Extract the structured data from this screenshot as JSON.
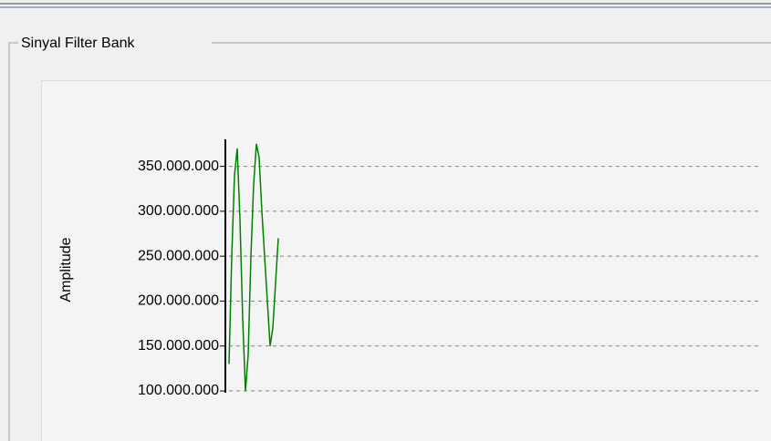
{
  "group_title": "Sinyal Filter Bank",
  "chart_data": {
    "type": "line",
    "ylabel": "Amplitude",
    "categories": [
      null,
      null,
      null,
      null,
      null,
      null,
      null,
      null,
      null,
      null,
      null,
      null,
      null,
      null,
      null,
      null,
      null,
      null,
      null
    ],
    "series": [
      {
        "name": null,
        "color": "#008000",
        "values": [
          130000000,
          250000000,
          340000000,
          370000000,
          290000000,
          180000000,
          100000000,
          140000000,
          250000000,
          330000000,
          375000000,
          360000000,
          300000000,
          250000000,
          200000000,
          150000000,
          170000000,
          220000000,
          270000000
        ]
      }
    ],
    "ylim": [
      98000000,
      380000000
    ],
    "yticks": [
      {
        "value": 100000000,
        "label": "100.000.000"
      },
      {
        "value": 150000000,
        "label": "150.000.000"
      },
      {
        "value": 200000000,
        "label": "200.000.000"
      },
      {
        "value": 250000000,
        "label": "250.000.000"
      },
      {
        "value": 300000000,
        "label": "300.000.000"
      },
      {
        "value": 350000000,
        "label": "350.000.000"
      }
    ],
    "grid": true
  }
}
